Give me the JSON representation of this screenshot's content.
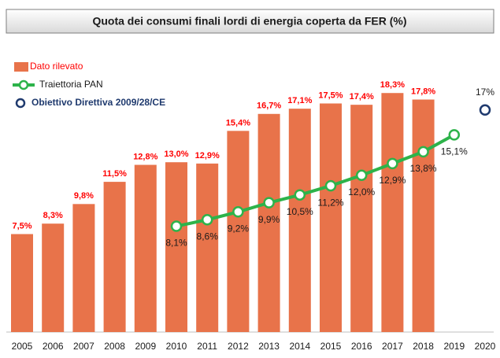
{
  "chart_data": {
    "type": "bar",
    "title": "Quota dei consumi finali lordi di energia coperta da FER (%)",
    "categories": [
      "2005",
      "2006",
      "2007",
      "2008",
      "2009",
      "2010",
      "2011",
      "2012",
      "2013",
      "2014",
      "2015",
      "2016",
      "2017",
      "2018",
      "2019",
      "2020"
    ],
    "ylim": [
      0,
      20
    ],
    "series": [
      {
        "name": "Dato rilevato",
        "type": "bar",
        "color": "#e8734a",
        "values": [
          7.5,
          8.3,
          9.8,
          11.5,
          12.8,
          13.0,
          12.9,
          15.4,
          16.7,
          17.1,
          17.5,
          17.4,
          18.3,
          17.8,
          null,
          null
        ],
        "value_labels": [
          "7,5%",
          "8,3%",
          "9,8%",
          "11,5%",
          "12,8%",
          "13,0%",
          "12,9%",
          "15,4%",
          "16,7%",
          "17,1%",
          "17,5%",
          "17,4%",
          "18,3%",
          "17,8%",
          null,
          null
        ]
      },
      {
        "name": "Traiettoria PAN",
        "type": "line",
        "color": "#2db34a",
        "values": [
          null,
          null,
          null,
          null,
          null,
          8.1,
          8.6,
          9.2,
          9.9,
          10.5,
          11.2,
          12.0,
          12.9,
          13.8,
          15.1,
          null
        ],
        "value_labels": [
          null,
          null,
          null,
          null,
          null,
          "8,1%",
          "8,6%",
          "9,2%",
          "9,9%",
          "10,5%",
          "11,2%",
          "12,0%",
          "12,9%",
          "13,8%",
          "15,1%",
          null
        ]
      },
      {
        "name": "Obiettivo Direttiva 2009/28/CE",
        "type": "scatter",
        "color": "#1f3a6e",
        "values": [
          null,
          null,
          null,
          null,
          null,
          null,
          null,
          null,
          null,
          null,
          null,
          null,
          null,
          null,
          null,
          17
        ],
        "value_labels": [
          null,
          null,
          null,
          null,
          null,
          null,
          null,
          null,
          null,
          null,
          null,
          null,
          null,
          null,
          null,
          "17%"
        ]
      }
    ]
  }
}
